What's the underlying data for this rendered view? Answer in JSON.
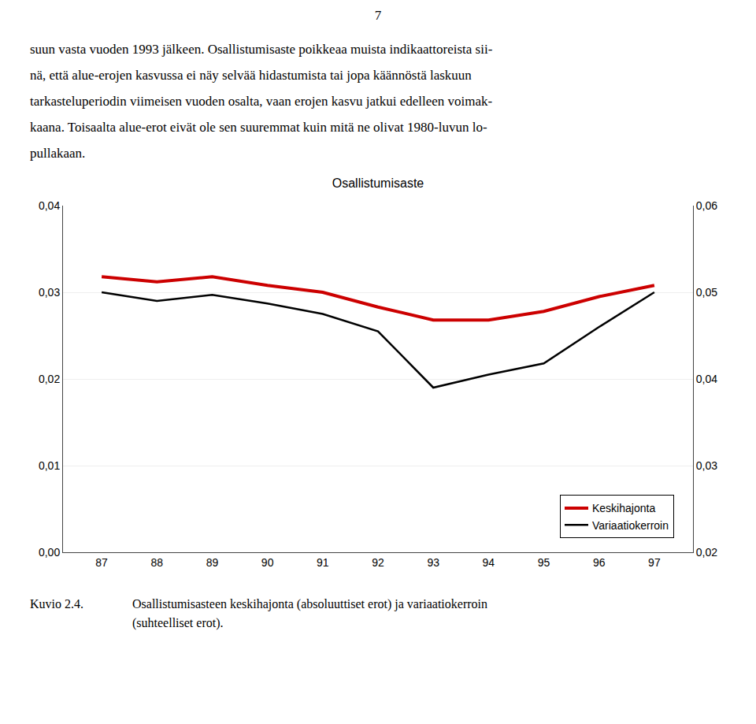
{
  "chart_data": {
    "type": "line",
    "title": "Osallistumisaste",
    "x": [
      87,
      88,
      89,
      90,
      91,
      92,
      93,
      94,
      95,
      96,
      97
    ],
    "xlim": [
      86.3,
      97.7
    ],
    "xticks": [
      87,
      88,
      89,
      90,
      91,
      92,
      93,
      94,
      95,
      96,
      97
    ],
    "series": [
      {
        "name": "Keskihajonta",
        "color": "#cc0000",
        "values": [
          0.0318,
          0.0312,
          0.0318,
          0.0308,
          0.03,
          0.0283,
          0.0268,
          0.0268,
          0.0278,
          0.0295,
          0.0308
        ]
      },
      {
        "name": "Variaatiokerroin",
        "color": "#000000",
        "axis": "y2",
        "values": [
          0.05,
          0.049,
          0.0497,
          0.0487,
          0.0475,
          0.0455,
          0.039,
          0.0405,
          0.0418,
          0.046,
          0.05
        ]
      }
    ],
    "ylim": [
      0,
      0.04
    ],
    "yticks": [
      {
        "value": 0,
        "label": "0,00"
      },
      {
        "value": 0.01,
        "label": "0,01"
      },
      {
        "value": 0.02,
        "label": "0,02"
      },
      {
        "value": 0.03,
        "label": "0,03"
      },
      {
        "value": 0.04,
        "label": "0,04"
      }
    ],
    "y2lim": [
      0.02,
      0.06
    ],
    "y2ticks": [
      {
        "value": 0.02,
        "label": "0,02"
      },
      {
        "value": 0.03,
        "label": "0,03"
      },
      {
        "value": 0.04,
        "label": "0,04"
      },
      {
        "value": 0.05,
        "label": "0,05"
      },
      {
        "value": 0.06,
        "label": "0,06"
      }
    ],
    "grid": true,
    "legend": "lower right",
    "page_number": "7",
    "header_lines": [
      "suun vasta vuoden 1993 jälkeen. Osallistumisaste poikkeaa muista indikaattoreista sii-",
      "nä, että alue-erojen kasvussa ei näy selvää hidastumista tai jopa käännöstä laskuun",
      "tarkasteluperiodin viimeisen vuoden osalta, vaan erojen kasvu jatkui edelleen voimak-",
      "kaana. Toisaalta alue-erot eivät ole sen suuremmat kuin mitä ne olivat 1980-luvun lo-",
      "pullakaan."
    ],
    "caption_label": "Kuvio 2.4.",
    "caption_text": "Osallistumisasteen keskihajonta (absoluuttiset erot) ja variaatiokerroin\n(suhteelliset erot)."
  }
}
